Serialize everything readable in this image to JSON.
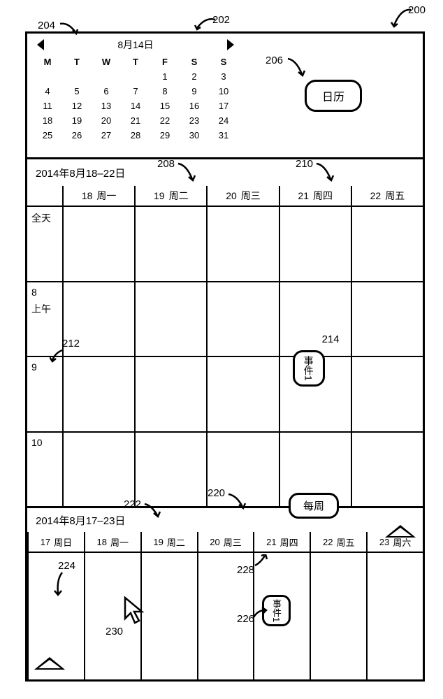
{
  "figure": {
    "labels": {
      "200": "200",
      "202": "202",
      "204": "204",
      "206": "206",
      "208": "208",
      "210": "210",
      "212": "212",
      "214": "214",
      "220": "220",
      "222": "222",
      "224": "224",
      "226": "226",
      "228": "228",
      "230": "230"
    }
  },
  "sidebar": {
    "minical": {
      "title": "8月14日",
      "dow": [
        "M",
        "T",
        "W",
        "T",
        "F",
        "S",
        "S"
      ],
      "rows": [
        [
          "",
          "",
          "",
          "",
          "1",
          "2",
          "3"
        ],
        [
          "4",
          "5",
          "6",
          "7",
          "8",
          "9",
          "10"
        ],
        [
          "11",
          "12",
          "13",
          "14",
          "15",
          "16",
          "17"
        ],
        [
          "18",
          "19",
          "20",
          "21",
          "22",
          "23",
          "24"
        ],
        [
          "25",
          "26",
          "27",
          "28",
          "29",
          "30",
          "31"
        ]
      ]
    },
    "calendar_button": "日历"
  },
  "main": {
    "title": "2014年8月18–22日",
    "time_rows": [
      {
        "top": "全天",
        "bottom": ""
      },
      {
        "top": "8",
        "bottom": "上午"
      },
      {
        "top": "9",
        "bottom": ""
      },
      {
        "top": "10",
        "bottom": ""
      }
    ],
    "days": [
      {
        "num": "18",
        "dow": "周一"
      },
      {
        "num": "19",
        "dow": "周二"
      },
      {
        "num": "20",
        "dow": "周三"
      },
      {
        "num": "21",
        "dow": "周四"
      },
      {
        "num": "22",
        "dow": "周五"
      }
    ],
    "event1": "事件1"
  },
  "peek": {
    "title": "2014年8月17–23日",
    "tab": "每周",
    "days": [
      {
        "num": "17",
        "dow": "周日"
      },
      {
        "num": "18",
        "dow": "周一"
      },
      {
        "num": "19",
        "dow": "周二"
      },
      {
        "num": "20",
        "dow": "周三"
      },
      {
        "num": "21",
        "dow": "周四"
      },
      {
        "num": "22",
        "dow": "周五"
      },
      {
        "num": "23",
        "dow": "周六"
      }
    ],
    "event1": "事件1"
  }
}
